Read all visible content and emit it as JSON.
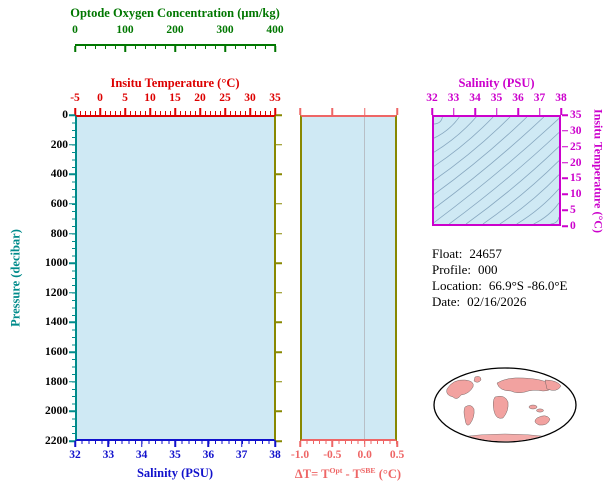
{
  "colors": {
    "oxygen": "#007700",
    "temperature": "#dd0000",
    "pressure": "#008b8b",
    "salinity": "#1111cc",
    "delta_t": "#ee6666",
    "magenta": "#cc00cc",
    "olive": "#888800",
    "plot_fill": "#cfe9f4",
    "contour": "#88a8c0",
    "land": "#f2a2a0",
    "zero_line": "#b8bfc6",
    "tick_text": "#000000"
  },
  "axes": {
    "oxygen": {
      "label": "Optode Oxygen Concentration (μm/kg)",
      "ticks": [
        "0",
        "100",
        "200",
        "300",
        "400"
      ]
    },
    "temperature_top": {
      "label": "Insitu Temperature (°C)",
      "ticks": [
        "-5",
        "0",
        "5",
        "10",
        "15",
        "20",
        "25",
        "30",
        "35"
      ]
    },
    "pressure": {
      "label": "Pressure (decibar)",
      "ticks": [
        "0",
        "200",
        "400",
        "600",
        "800",
        "1000",
        "1200",
        "1400",
        "1600",
        "1800",
        "2000",
        "2200"
      ]
    },
    "salinity_bottom": {
      "label": "Salinity (PSU)",
      "ticks": [
        "32",
        "33",
        "34",
        "35",
        "36",
        "37",
        "38"
      ]
    },
    "delta_t": {
      "label_prefix": "ΔT= T",
      "label_sup1": "Opt",
      "label_mid": " - T",
      "label_sup2": "SBE",
      "label_suffix": " (°C)",
      "ticks": [
        "-1.0",
        "-0.5",
        "0.0",
        "0.5"
      ]
    },
    "ts_salinity": {
      "label": "Salinity (PSU)",
      "ticks": [
        "32",
        "33",
        "34",
        "35",
        "36",
        "37",
        "38"
      ]
    },
    "ts_temperature": {
      "label": "Insitu Temperature (°C)",
      "ticks": [
        "35",
        "30",
        "25",
        "20",
        "15",
        "10",
        "5",
        "0"
      ]
    }
  },
  "info": {
    "float_label": "Float:",
    "float_value": "24657",
    "profile_label": "Profile:",
    "profile_value": "000",
    "location_label": "Location:",
    "location_value": "66.9°S -86.0°E",
    "date_label": "Date:",
    "date_value": "02/16/2026"
  },
  "ts_panel": {
    "contour_count": 15,
    "contour_slope": 1.2
  },
  "chart_data": [
    {
      "type": "line",
      "title": "Float profile panel (empty - no trace drawn)",
      "x_axes": [
        {
          "label": "Salinity (PSU)",
          "range": [
            32,
            38
          ],
          "position": "bottom"
        },
        {
          "label": "Insitu Temperature (°C)",
          "range": [
            -5,
            35
          ],
          "position": "top"
        },
        {
          "label": "Optode Oxygen Concentration (μm/kg)",
          "range": [
            0,
            400
          ],
          "position": "top-outer"
        }
      ],
      "y_axis": {
        "label": "Pressure (decibar)",
        "range": [
          0,
          2200
        ],
        "inverted": true
      },
      "series": [],
      "grid": false,
      "note": "panel background light blue, no data points visible"
    },
    {
      "type": "line",
      "title": "Temperature difference panel (empty - no trace drawn)",
      "x_axis": {
        "label": "ΔT= T^Opt - T^SBE (°C)",
        "range": [
          -1.0,
          0.5
        ],
        "position": "bottom"
      },
      "y_axis": {
        "label": "Pressure (decibar)",
        "range": [
          0,
          2200
        ],
        "inverted": true
      },
      "series": [],
      "annotations": [
        {
          "type": "vline",
          "x": 0.0
        }
      ]
    },
    {
      "type": "line",
      "title": "T-S diagram with isopycnal contours (no data points)",
      "x_axis": {
        "label": "Salinity (PSU)",
        "range": [
          32,
          38
        ],
        "position": "top"
      },
      "y_axis": {
        "label": "Insitu Temperature (°C)",
        "range": [
          0,
          35
        ],
        "position": "right"
      },
      "series": [],
      "contours": "approx. 15 diagonal density isopycnal lines, lower-left to upper-right"
    }
  ]
}
